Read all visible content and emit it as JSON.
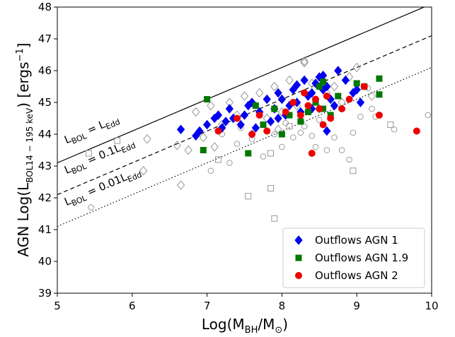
{
  "chart_data": {
    "type": "scatter",
    "xlabel_main": "Log(M",
    "xlabel_sub": "BH",
    "xlabel_mid": "/M",
    "xlabel_sub2": "⊙",
    "xlabel_end": ")",
    "ylabel_main": "AGN Log(L",
    "ylabel_sub": "BOL14 − 195 keV",
    "ylabel_end": ") [ergs",
    "ylabel_sup": "−1",
    "ylabel_close": "]",
    "xlim": [
      5,
      10
    ],
    "ylim": [
      39,
      48
    ],
    "xticks": [
      "5",
      "6",
      "7",
      "8",
      "9",
      "10"
    ],
    "yticks": [
      "39",
      "40",
      "41",
      "42",
      "43",
      "44",
      "45",
      "46",
      "47",
      "48"
    ],
    "lines": [
      {
        "label_main": "L",
        "label_sub": "BOL",
        "label_rest": " = L",
        "label_sub2": "Edd",
        "offset": 0,
        "style": "solid"
      },
      {
        "label_main": "L",
        "label_sub": "BOL",
        "label_rest": " = 0.1L",
        "label_sub2": "Edd",
        "offset": -1,
        "style": "dashed"
      },
      {
        "label_main": "L",
        "label_sub": "BOL",
        "label_rest": " = 0.01L",
        "label_sub2": "Edd",
        "offset": -2,
        "style": "dotted"
      }
    ],
    "legend_position": "bottom-right",
    "series": [
      {
        "name": "Outflows AGN 1",
        "marker": "diamond",
        "color": "#0000ee",
        "points": [
          [
            6.65,
            44.15
          ],
          [
            6.85,
            43.95
          ],
          [
            6.9,
            44.1
          ],
          [
            7.0,
            44.3
          ],
          [
            7.1,
            44.5
          ],
          [
            7.15,
            44.6
          ],
          [
            7.2,
            44.2
          ],
          [
            7.25,
            44.4
          ],
          [
            7.3,
            44.8
          ],
          [
            7.35,
            44.5
          ],
          [
            7.45,
            44.3
          ],
          [
            7.5,
            44.6
          ],
          [
            7.55,
            44.9
          ],
          [
            7.6,
            45.0
          ],
          [
            7.65,
            44.2
          ],
          [
            7.7,
            44.7
          ],
          [
            7.8,
            45.1
          ],
          [
            7.85,
            44.4
          ],
          [
            7.9,
            44.8
          ],
          [
            7.95,
            45.3
          ],
          [
            8.0,
            45.1
          ],
          [
            8.05,
            44.6
          ],
          [
            8.1,
            44.9
          ],
          [
            8.15,
            45.4
          ],
          [
            8.2,
            45.0
          ],
          [
            8.25,
            44.7
          ],
          [
            8.3,
            45.7
          ],
          [
            8.35,
            45.2
          ],
          [
            8.4,
            44.8
          ],
          [
            8.45,
            45.6
          ],
          [
            8.5,
            45.8
          ],
          [
            8.55,
            45.4
          ],
          [
            8.6,
            45.5
          ],
          [
            8.65,
            45.1
          ],
          [
            8.7,
            44.9
          ],
          [
            8.75,
            46.0
          ],
          [
            8.85,
            45.7
          ],
          [
            8.95,
            45.3
          ],
          [
            9.0,
            45.4
          ],
          [
            9.05,
            45.0
          ],
          [
            8.55,
            45.85
          ],
          [
            8.4,
            45.3
          ],
          [
            8.2,
            45.55
          ],
          [
            7.95,
            44.5
          ],
          [
            8.6,
            44.1
          ]
        ]
      },
      {
        "name": "Outflows AGN 1.9",
        "marker": "square",
        "color": "#007700",
        "points": [
          [
            6.95,
            43.5
          ],
          [
            7.0,
            45.1
          ],
          [
            7.55,
            43.4
          ],
          [
            7.65,
            44.9
          ],
          [
            7.9,
            44.8
          ],
          [
            8.0,
            44.0
          ],
          [
            8.1,
            44.6
          ],
          [
            8.25,
            44.4
          ],
          [
            8.35,
            44.7
          ],
          [
            8.45,
            45.0
          ],
          [
            8.5,
            45.5
          ],
          [
            8.55,
            44.8
          ],
          [
            8.65,
            44.6
          ],
          [
            8.75,
            45.2
          ],
          [
            9.0,
            45.6
          ],
          [
            9.1,
            45.5
          ],
          [
            9.3,
            45.25
          ],
          [
            9.3,
            45.75
          ],
          [
            7.75,
            44.3
          ],
          [
            8.55,
            45.65
          ]
        ]
      },
      {
        "name": "Outflows AGN 2",
        "marker": "circle",
        "color": "#ee0000",
        "points": [
          [
            7.15,
            44.1
          ],
          [
            7.4,
            44.5
          ],
          [
            7.6,
            44.0
          ],
          [
            7.7,
            44.6
          ],
          [
            7.8,
            44.1
          ],
          [
            8.05,
            44.7
          ],
          [
            8.15,
            45.0
          ],
          [
            8.25,
            44.6
          ],
          [
            8.35,
            44.9
          ],
          [
            8.4,
            43.4
          ],
          [
            8.45,
            45.1
          ],
          [
            8.5,
            44.8
          ],
          [
            8.6,
            45.2
          ],
          [
            8.65,
            44.5
          ],
          [
            8.8,
            44.8
          ],
          [
            8.9,
            45.1
          ],
          [
            9.1,
            45.5
          ],
          [
            9.3,
            44.6
          ],
          [
            9.8,
            44.1
          ],
          [
            8.3,
            45.3
          ],
          [
            8.55,
            44.3
          ]
        ]
      },
      {
        "name": "",
        "marker": "open-diamond",
        "color": "#999999",
        "points": [
          [
            6.6,
            43.65
          ],
          [
            6.65,
            42.4
          ],
          [
            6.75,
            43.5
          ],
          [
            6.85,
            44.7
          ],
          [
            6.95,
            43.9
          ],
          [
            7.05,
            44.9
          ],
          [
            7.1,
            43.6
          ],
          [
            7.2,
            44.3
          ],
          [
            7.3,
            45.0
          ],
          [
            7.4,
            44.6
          ],
          [
            7.5,
            45.2
          ],
          [
            7.6,
            44.0
          ],
          [
            7.7,
            45.3
          ],
          [
            7.8,
            44.5
          ],
          [
            7.9,
            45.5
          ],
          [
            8.0,
            44.7
          ],
          [
            8.1,
            45.7
          ],
          [
            8.2,
            44.9
          ],
          [
            8.3,
            46.3
          ],
          [
            8.4,
            45.6
          ],
          [
            8.5,
            44.8
          ],
          [
            8.6,
            45.3
          ],
          [
            8.7,
            45.5
          ],
          [
            8.8,
            45.0
          ],
          [
            8.9,
            45.8
          ],
          [
            9.0,
            46.1
          ],
          [
            9.2,
            45.2
          ],
          [
            6.2,
            43.85
          ],
          [
            6.15,
            42.85
          ],
          [
            7.95,
            44.15
          ],
          [
            8.3,
            46.25
          ]
        ]
      },
      {
        "name": "",
        "marker": "open-square",
        "color": "#999999",
        "points": [
          [
            5.42,
            43.4
          ],
          [
            5.8,
            43.8
          ],
          [
            7.15,
            43.2
          ],
          [
            7.55,
            42.05
          ],
          [
            7.85,
            42.3
          ],
          [
            7.9,
            41.35
          ],
          [
            7.85,
            43.4
          ],
          [
            8.95,
            42.85
          ],
          [
            9.45,
            44.3
          ],
          [
            8.1,
            44.25
          ]
        ]
      },
      {
        "name": "",
        "marker": "open-circle",
        "color": "#999999",
        "points": [
          [
            5.45,
            41.7
          ],
          [
            7.05,
            42.85
          ],
          [
            7.3,
            43.1
          ],
          [
            7.4,
            43.7
          ],
          [
            7.6,
            43.85
          ],
          [
            7.75,
            43.3
          ],
          [
            7.9,
            44.0
          ],
          [
            8.05,
            44.35
          ],
          [
            8.15,
            43.9
          ],
          [
            8.3,
            44.25
          ],
          [
            8.4,
            43.95
          ],
          [
            8.5,
            44.45
          ],
          [
            8.6,
            43.5
          ],
          [
            8.7,
            43.9
          ],
          [
            8.8,
            43.5
          ],
          [
            8.9,
            43.2
          ],
          [
            8.95,
            44.05
          ],
          [
            9.05,
            44.55
          ],
          [
            9.2,
            44.8
          ],
          [
            9.25,
            44.55
          ],
          [
            9.5,
            44.15
          ],
          [
            9.95,
            44.6
          ],
          [
            7.2,
            44.0
          ],
          [
            7.45,
            44.2
          ],
          [
            8.0,
            43.6
          ],
          [
            8.25,
            44.05
          ],
          [
            9.15,
            45.45
          ],
          [
            8.45,
            43.6
          ]
        ]
      }
    ]
  }
}
